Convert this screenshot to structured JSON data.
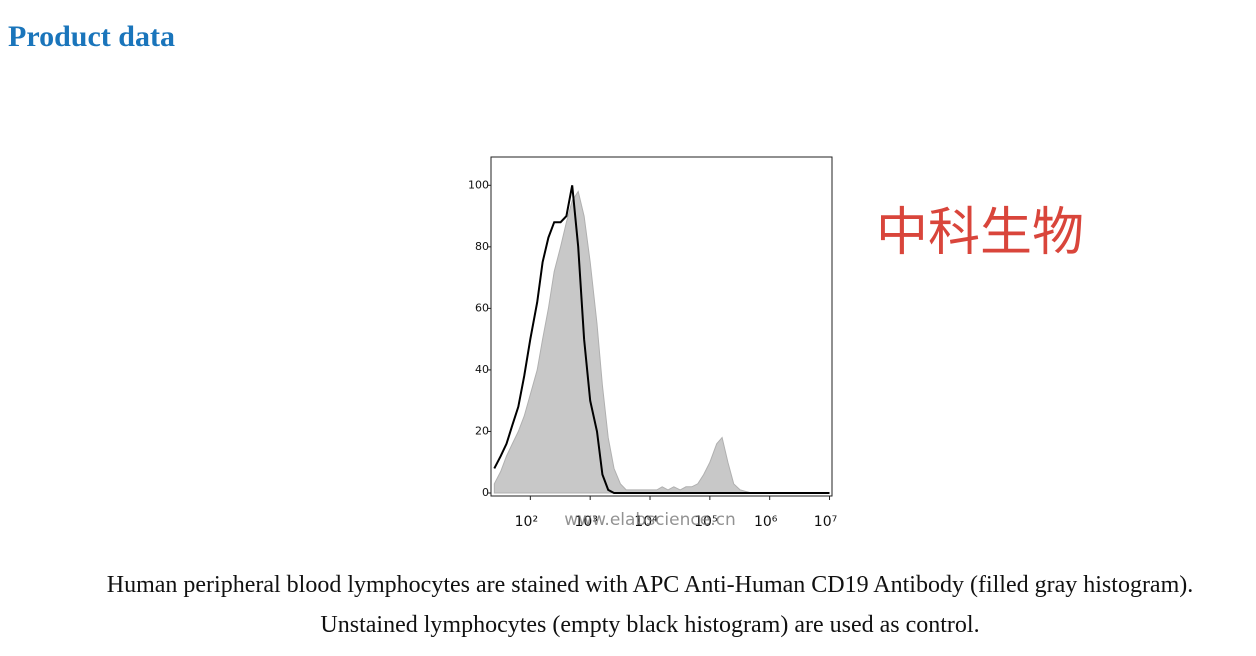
{
  "header": {
    "title": "Product data"
  },
  "watermark": {
    "company": "中科生物",
    "site": "www.elabscience.cn"
  },
  "caption": [
    "Human peripheral blood lymphocytes are stained with APC Anti-Human CD19 Antibody (filled gray histogram).",
    "Unstained lymphocytes (empty black histogram) are used as control."
  ],
  "chart_data": {
    "type": "histogram",
    "x": [
      25,
      32,
      40,
      50,
      63,
      79,
      100,
      130,
      160,
      200,
      250,
      320,
      400,
      500,
      630,
      790,
      1000,
      1300,
      1600,
      2000,
      2500,
      3200,
      4000,
      5000,
      6300,
      7900,
      10000,
      13000,
      16000,
      20000,
      25000,
      32000,
      40000,
      50000,
      63000,
      79000,
      100000,
      130000,
      160000,
      200000,
      250000,
      320000,
      400000,
      500000,
      630000,
      790000,
      1000000,
      1300000,
      1600000,
      2000000,
      2500000,
      3200000,
      4000000,
      5000000,
      6300000,
      7900000,
      10000000
    ],
    "series": [
      {
        "color": "#c8c8c8",
        "style": "area",
        "values": [
          3,
          7,
          12,
          16,
          20,
          25,
          32,
          40,
          50,
          60,
          72,
          80,
          88,
          95,
          98,
          90,
          75,
          55,
          35,
          18,
          8,
          3,
          1,
          1,
          1,
          1,
          1,
          1,
          2,
          1,
          2,
          1,
          2,
          2,
          3,
          6,
          10,
          16,
          18,
          10,
          3,
          1,
          0.5,
          0,
          0,
          0,
          0,
          0,
          0,
          0,
          0,
          0,
          0,
          0,
          0,
          0,
          0
        ]
      },
      {
        "color": "#000000",
        "style": "line",
        "values": [
          8,
          12,
          16,
          22,
          28,
          38,
          50,
          62,
          75,
          83,
          88,
          88,
          90,
          100,
          80,
          50,
          30,
          20,
          6,
          1,
          0,
          0,
          0,
          0,
          0,
          0,
          0,
          0,
          0,
          0,
          0,
          0,
          0,
          0,
          0,
          0,
          0,
          0,
          0,
          0,
          0,
          0,
          0,
          0,
          0,
          0,
          0,
          0,
          0,
          0,
          0,
          0,
          0,
          0,
          0,
          0,
          0
        ]
      }
    ],
    "xscale": "log",
    "xlim": [
      22,
      11000000
    ],
    "xticks": [
      {
        "value": 100,
        "label": "10²"
      },
      {
        "value": 1000,
        "label": "10³"
      },
      {
        "value": 10000,
        "label": "10⁴"
      },
      {
        "value": 100000,
        "label": "10⁵"
      },
      {
        "value": 1000000,
        "label": "10⁶"
      },
      {
        "value": 10000000,
        "label": "10⁷"
      }
    ],
    "ylim": [
      0,
      104
    ],
    "yticks": [
      0,
      20,
      40,
      60,
      80,
      100
    ]
  }
}
